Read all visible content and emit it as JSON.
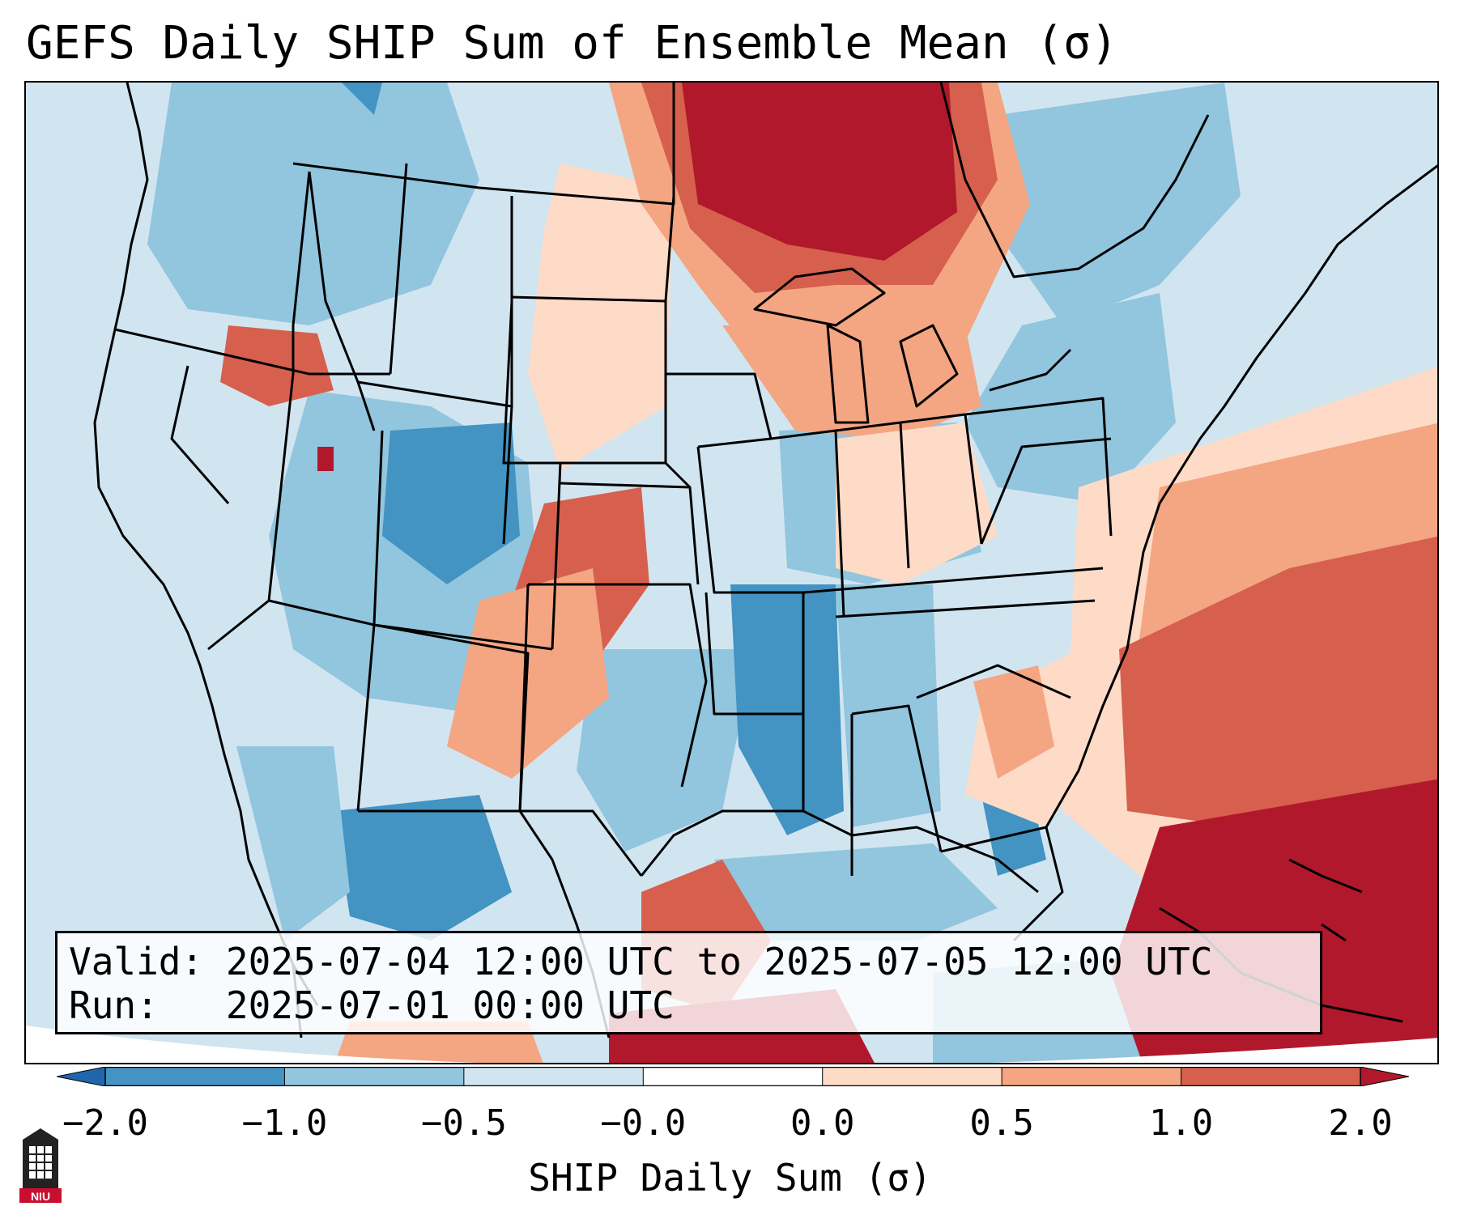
{
  "title": "GEFS Daily SHIP Sum of Ensemble Mean (σ)",
  "info": {
    "valid_label": "Valid:",
    "valid_value": "2025-07-04 12:00 UTC to 2025-07-05 12:00 UTC",
    "run_label": "Run:",
    "run_value": "2025-07-01 00:00 UTC"
  },
  "colorbar": {
    "label": "SHIP Daily Sum (σ)",
    "tick_labels": [
      "−2.0",
      "−1.0",
      "−0.5",
      "−0.0",
      "0.0",
      "0.5",
      "1.0",
      "2.0"
    ],
    "bins": [
      -2.0,
      -1.0,
      -0.5,
      -0.0,
      0.0,
      0.5,
      1.0,
      2.0
    ],
    "colors": [
      "#4393c3",
      "#92c5de",
      "#d1e5f0",
      "#ffffff",
      "#fddbc7",
      "#f4a582",
      "#d6604d"
    ],
    "under_color": "#2166ac",
    "over_color": "#b2182b"
  },
  "field_colors": {
    "strong_neg": "#4393c3",
    "neg": "#92c5de",
    "weak_neg": "#d1e5f0",
    "weak_pos": "#fddbc7",
    "pos": "#f4a582",
    "strong_pos": "#d6604d",
    "extreme_pos": "#b2182b"
  },
  "logo": {
    "text": "NIU",
    "icon": "niu-tower-icon",
    "color": "#c8102e"
  }
}
